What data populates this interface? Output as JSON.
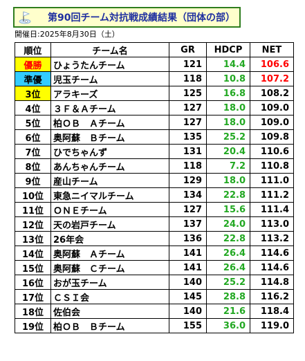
{
  "title": "第90回チーム対抗戦成績結果（団体の部）",
  "date": "開催日:2025年8月30日（土）",
  "headers": {
    "rank": "順位",
    "team": "チーム名",
    "gr": "GR",
    "hdcp": "HDCP",
    "net": "NET"
  },
  "colors": {
    "hdcp_text": "#22a822",
    "highlight_red": "#ff0000",
    "winner_bg": "#ffff00",
    "runner_up_bg": "#33ccff"
  },
  "rows": [
    {
      "rank": "優勝",
      "team": "ひょうたんチーム",
      "gr": "121",
      "hdcp": "14.4",
      "net": "106.6"
    },
    {
      "rank": "準優",
      "team": "児玉チーム",
      "gr": "118",
      "hdcp": "10.8",
      "net": "107.2"
    },
    {
      "rank": "3位",
      "team": "アラキーズ",
      "gr": "125",
      "hdcp": "16.8",
      "net": "108.2"
    },
    {
      "rank": "4位",
      "team": "３Ｆ＆Ａチーム",
      "gr": "127",
      "hdcp": "18.0",
      "net": "109.0"
    },
    {
      "rank": "5位",
      "team": "柏ＯＢ　Ａチーム",
      "gr": "127",
      "hdcp": "18.0",
      "net": "109.0"
    },
    {
      "rank": "6位",
      "team": "奥阿蘇　Ｂチーム",
      "gr": "135",
      "hdcp": "25.2",
      "net": "109.8"
    },
    {
      "rank": "7位",
      "team": "ひでちゃんず",
      "gr": "131",
      "hdcp": "20.4",
      "net": "110.6"
    },
    {
      "rank": "8位",
      "team": "あんちゃんチーム",
      "gr": "118",
      "hdcp": "7.2",
      "net": "110.8"
    },
    {
      "rank": "9位",
      "team": "産山チーム",
      "gr": "129",
      "hdcp": "18.0",
      "net": "111.0"
    },
    {
      "rank": "10位",
      "team": "東急ニイマルチーム",
      "gr": "134",
      "hdcp": "22.8",
      "net": "111.2"
    },
    {
      "rank": "11位",
      "team": "ＯＮＥチーム",
      "gr": "127",
      "hdcp": "15.6",
      "net": "111.4"
    },
    {
      "rank": "12位",
      "team": "天の岩戸チーム",
      "gr": "137",
      "hdcp": "24.0",
      "net": "113.0"
    },
    {
      "rank": "13位",
      "team": "26年会",
      "gr": "136",
      "hdcp": "22.8",
      "net": "113.2"
    },
    {
      "rank": "14位",
      "team": "奥阿蘇　Ａチーム",
      "gr": "141",
      "hdcp": "26.4",
      "net": "114.6"
    },
    {
      "rank": "15位",
      "team": "奥阿蘇　Ｃチーム",
      "gr": "141",
      "hdcp": "26.4",
      "net": "114.6"
    },
    {
      "rank": "16位",
      "team": "おが玉チーム",
      "gr": "140",
      "hdcp": "25.2",
      "net": "114.8"
    },
    {
      "rank": "17位",
      "team": "ＣＳＩ会",
      "gr": "145",
      "hdcp": "28.8",
      "net": "116.2"
    },
    {
      "rank": "18位",
      "team": "佐伯会",
      "gr": "140",
      "hdcp": "21.6",
      "net": "118.4"
    },
    {
      "rank": "19位",
      "team": "柏ＯＢ　Ｂチーム",
      "gr": "155",
      "hdcp": "36.0",
      "net": "119.0"
    }
  ]
}
